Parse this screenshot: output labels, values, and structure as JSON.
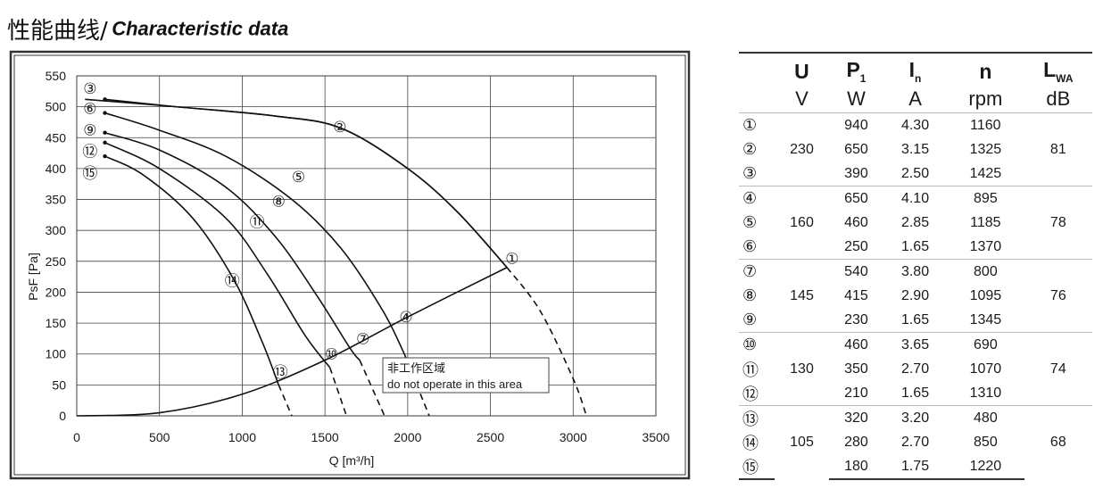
{
  "title": {
    "cn": "性能曲线/",
    "en": "Characteristic data"
  },
  "chart_data": {
    "type": "line",
    "xlabel": "Q [m³/h]",
    "ylabel": "PsF [Pa]",
    "xlim": [
      0,
      3500
    ],
    "ylim": [
      0,
      550
    ],
    "x_ticks": [
      "0",
      "500",
      "1000",
      "1500",
      "2000",
      "2500",
      "3000",
      "3500"
    ],
    "y_ticks": [
      "0",
      "50",
      "100",
      "150",
      "200",
      "250",
      "300",
      "350",
      "400",
      "450",
      "500",
      "550"
    ],
    "grid": true,
    "annotation": {
      "cn": "非工作区域",
      "en": "do not operate in this area"
    },
    "series": [
      {
        "name": "①",
        "points": [
          [
            50,
            512
          ],
          [
            600,
            500
          ],
          [
            1200,
            485
          ],
          [
            1600,
            465
          ],
          [
            2000,
            400
          ],
          [
            2300,
            330
          ],
          [
            2600,
            240
          ],
          [
            2800,
            170
          ],
          [
            3000,
            60
          ],
          [
            3080,
            0
          ]
        ],
        "solid_until": 2600
      },
      {
        "name": "②",
        "points": [
          [
            170,
            512
          ],
          [
            600,
            500
          ],
          [
            1200,
            485
          ],
          [
            1600,
            465
          ],
          [
            2000,
            400
          ],
          [
            2300,
            330
          ],
          [
            2600,
            240
          ]
        ],
        "solid_until": 2600,
        "label_pos": [
          1590,
          468
        ]
      },
      {
        "name": "③",
        "points": [
          [
            170,
            512
          ],
          [
            600,
            500
          ],
          [
            1200,
            485
          ],
          [
            1600,
            465
          ],
          [
            2000,
            400
          ],
          [
            2300,
            330
          ],
          [
            2600,
            240
          ]
        ],
        "solid_until": 2600,
        "label_pos": [
          80,
          530
        ]
      },
      {
        "name": "④",
        "points": [
          [
            170,
            490
          ],
          [
            500,
            462
          ],
          [
            900,
            420
          ],
          [
            1300,
            350
          ],
          [
            1600,
            270
          ],
          [
            1850,
            170
          ],
          [
            1980,
            100
          ],
          [
            2130,
            0
          ]
        ],
        "solid_until": 1980,
        "label_pos": [
          1990,
          160
        ]
      },
      {
        "name": "⑤",
        "points": [
          [
            170,
            490
          ],
          [
            500,
            462
          ],
          [
            900,
            420
          ],
          [
            1300,
            350
          ],
          [
            1600,
            270
          ],
          [
            1850,
            170
          ],
          [
            1980,
            100
          ],
          [
            2130,
            0
          ]
        ],
        "solid_until": 1980,
        "label_pos": [
          1340,
          387
        ]
      },
      {
        "name": "⑥",
        "points": [
          [
            170,
            490
          ],
          [
            500,
            462
          ],
          [
            900,
            420
          ],
          [
            1300,
            350
          ],
          [
            1600,
            270
          ],
          [
            1850,
            170
          ],
          [
            1980,
            100
          ],
          [
            2130,
            0
          ]
        ],
        "solid_until": 1980,
        "label_pos": [
          80,
          497
        ]
      },
      {
        "name": "⑦",
        "points": [
          [
            170,
            458
          ],
          [
            500,
            430
          ],
          [
            900,
            370
          ],
          [
            1200,
            290
          ],
          [
            1450,
            195
          ],
          [
            1650,
            110
          ],
          [
            1710,
            90
          ],
          [
            1860,
            0
          ]
        ],
        "solid_until": 1710,
        "label_pos": [
          1730,
          125
        ]
      },
      {
        "name": "⑧",
        "points": [
          [
            170,
            458
          ],
          [
            500,
            430
          ],
          [
            900,
            370
          ],
          [
            1200,
            290
          ],
          [
            1450,
            195
          ],
          [
            1650,
            110
          ],
          [
            1710,
            90
          ],
          [
            1860,
            0
          ]
        ],
        "solid_until": 1710,
        "label_pos": [
          1220,
          347
        ]
      },
      {
        "name": "⑨",
        "points": [
          [
            170,
            458
          ],
          [
            500,
            430
          ],
          [
            900,
            370
          ],
          [
            1200,
            290
          ],
          [
            1450,
            195
          ],
          [
            1650,
            110
          ],
          [
            1710,
            90
          ],
          [
            1860,
            0
          ]
        ],
        "solid_until": 1710,
        "label_pos": [
          80,
          463
        ]
      },
      {
        "name": "⑩",
        "points": [
          [
            170,
            442
          ],
          [
            500,
            400
          ],
          [
            900,
            320
          ],
          [
            1150,
            230
          ],
          [
            1380,
            130
          ],
          [
            1530,
            78
          ],
          [
            1630,
            0
          ]
        ],
        "solid_until": 1530,
        "label_pos": [
          1540,
          100
        ]
      },
      {
        "name": "⑪",
        "points": [
          [
            170,
            442
          ],
          [
            500,
            400
          ],
          [
            900,
            320
          ],
          [
            1150,
            230
          ],
          [
            1380,
            130
          ],
          [
            1530,
            78
          ],
          [
            1630,
            0
          ]
        ],
        "solid_until": 1530,
        "label_pos": [
          1090,
          314
        ]
      },
      {
        "name": "⑫",
        "points": [
          [
            170,
            442
          ],
          [
            500,
            400
          ],
          [
            900,
            320
          ],
          [
            1150,
            230
          ],
          [
            1380,
            130
          ],
          [
            1530,
            78
          ],
          [
            1630,
            0
          ]
        ],
        "solid_until": 1530,
        "label_pos": [
          80,
          428
        ]
      },
      {
        "name": "⑬",
        "points": [
          [
            170,
            420
          ],
          [
            400,
            390
          ],
          [
            700,
            320
          ],
          [
            950,
            220
          ],
          [
            1120,
            120
          ],
          [
            1220,
            50
          ],
          [
            1300,
            0
          ]
        ],
        "solid_until": 1220,
        "label_pos": [
          1230,
          71
        ]
      },
      {
        "name": "⑭",
        "points": [
          [
            170,
            420
          ],
          [
            400,
            390
          ],
          [
            700,
            320
          ],
          [
            950,
            220
          ],
          [
            1120,
            120
          ],
          [
            1220,
            50
          ],
          [
            1300,
            0
          ]
        ],
        "solid_until": 1220,
        "label_pos": [
          940,
          219
        ]
      },
      {
        "name": "⑮",
        "points": [
          [
            170,
            420
          ],
          [
            400,
            390
          ],
          [
            700,
            320
          ],
          [
            950,
            220
          ],
          [
            1120,
            120
          ],
          [
            1220,
            50
          ],
          [
            1300,
            0
          ]
        ],
        "solid_until": 1220,
        "label_pos": [
          80,
          393
        ]
      },
      {
        "name": "system",
        "points": [
          [
            0,
            0
          ],
          [
            500,
            5
          ],
          [
            1000,
            35
          ],
          [
            1500,
            90
          ],
          [
            2000,
            160
          ],
          [
            2600,
            240
          ]
        ],
        "solid_until": 2600
      }
    ],
    "curve_group_labels": [
      "①",
      "②",
      "③",
      "④",
      "⑤",
      "⑥",
      "⑦",
      "⑧",
      "⑨",
      "⑩",
      "⑪",
      "⑫",
      "⑬",
      "⑭",
      "⑮"
    ]
  },
  "table": {
    "headers": {
      "U": "U",
      "U_unit": "V",
      "P1": "P",
      "P1_sub": "1",
      "P1_unit": "W",
      "In": "I",
      "In_sub": "n",
      "In_unit": "A",
      "n": "n",
      "n_unit": "rpm",
      "LWA": "L",
      "LWA_sub": "WA",
      "LWA_unit": "dB"
    },
    "groups": [
      {
        "U": "230",
        "L": "81",
        "rows": [
          {
            "id": "①",
            "P": "940",
            "I": "4.30",
            "n": "1160"
          },
          {
            "id": "②",
            "P": "650",
            "I": "3.15",
            "n": "1325"
          },
          {
            "id": "③",
            "P": "390",
            "I": "2.50",
            "n": "1425"
          }
        ]
      },
      {
        "U": "160",
        "L": "78",
        "rows": [
          {
            "id": "④",
            "P": "650",
            "I": "4.10",
            "n": "895"
          },
          {
            "id": "⑤",
            "P": "460",
            "I": "2.85",
            "n": "1185"
          },
          {
            "id": "⑥",
            "P": "250",
            "I": "1.65",
            "n": "1370"
          }
        ]
      },
      {
        "U": "145",
        "L": "76",
        "rows": [
          {
            "id": "⑦",
            "P": "540",
            "I": "3.80",
            "n": "800"
          },
          {
            "id": "⑧",
            "P": "415",
            "I": "2.90",
            "n": "1095"
          },
          {
            "id": "⑨",
            "P": "230",
            "I": "1.65",
            "n": "1345"
          }
        ]
      },
      {
        "U": "130",
        "L": "74",
        "rows": [
          {
            "id": "⑩",
            "P": "460",
            "I": "3.65",
            "n": "690"
          },
          {
            "id": "⑪",
            "P": "350",
            "I": "2.70",
            "n": "1070"
          },
          {
            "id": "⑫",
            "P": "210",
            "I": "1.65",
            "n": "1310"
          }
        ]
      },
      {
        "U": "105",
        "L": "68",
        "rows": [
          {
            "id": "⑬",
            "P": "320",
            "I": "3.20",
            "n": "480"
          },
          {
            "id": "⑭",
            "P": "280",
            "I": "2.70",
            "n": "850"
          },
          {
            "id": "⑮",
            "P": "180",
            "I": "1.75",
            "n": "1220"
          }
        ]
      }
    ]
  }
}
